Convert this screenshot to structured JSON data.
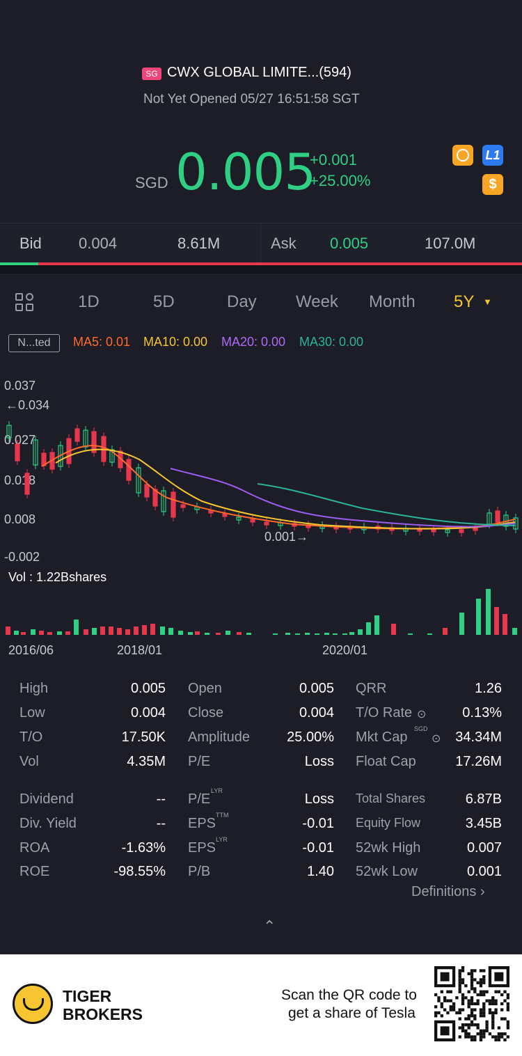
{
  "header": {
    "market_tag": "SG",
    "title": "CWX GLOBAL LIMITE...(594)",
    "status": "Not Yet Opened 05/27 16:51:58 SGT",
    "currency": "SGD",
    "price": "0.005",
    "change": "+0.001",
    "change_pct": "+25.00%",
    "icons": [
      "no-short-icon",
      "level1-icon",
      "dollar-icon"
    ],
    "level_icon_text": "L1",
    "dollar_icon_text": "$"
  },
  "quote": {
    "bid_label": "Bid",
    "bid_price": "0.004",
    "bid_size": "8.61M",
    "ask_label": "Ask",
    "ask_price": "0.005",
    "ask_size": "107.0M"
  },
  "tabs": {
    "items": [
      "1D",
      "5D",
      "Day",
      "Week",
      "Month",
      "5Y"
    ],
    "active": "5Y"
  },
  "indicators": {
    "badge": "N...ted",
    "ma5": "MA5: 0.01",
    "ma10": "MA10: 0.00",
    "ma20": "MA20: 0.00",
    "ma30": "MA30: 0.00"
  },
  "chart_data": {
    "type": "candlestick",
    "y_ticks": [
      "0.037",
      "0.027",
      "0.018",
      "0.008",
      "-0.002"
    ],
    "max_label": "←0.034",
    "min_label": "0.001→",
    "volume_label": "Vol  : 1.22Bshares",
    "x_ticks": [
      "2016/06",
      "2018/01",
      "2020/01"
    ],
    "ma_colors": {
      "ma5": "#ff6a2b",
      "ma10": "#f6c531",
      "ma20": "#9b5cf0",
      "ma30": "#2bb39b"
    },
    "colors": {
      "up": "#2fcf84",
      "down": "#e6374d"
    }
  },
  "stats": {
    "col1": [
      {
        "label": "High",
        "value": "0.005"
      },
      {
        "label": "Low",
        "value": "0.004"
      },
      {
        "label": "T/O",
        "value": "17.50K"
      },
      {
        "label": "Vol",
        "value": "4.35M"
      },
      {
        "label": "Dividend",
        "value": "--"
      },
      {
        "label": "Div. Yield",
        "value": "--"
      },
      {
        "label": "ROA",
        "value": "-1.63%"
      },
      {
        "label": "ROE",
        "value": "-98.55%"
      }
    ],
    "col2": [
      {
        "label": "Open",
        "value": "0.005"
      },
      {
        "label": "Close",
        "value": "0.004"
      },
      {
        "label": "Amplitude",
        "value": "25.00%"
      },
      {
        "label": "P/E",
        "value": "Loss"
      },
      {
        "label": "P/E",
        "sup": "LYR",
        "value": "Loss"
      },
      {
        "label": "EPS",
        "sup": "TTM",
        "value": "-0.01"
      },
      {
        "label": "EPS",
        "sup": "LYR",
        "value": "-0.01"
      },
      {
        "label": "P/B",
        "value": "1.40"
      }
    ],
    "col3": [
      {
        "label": "QRR",
        "value": "1.26"
      },
      {
        "label": "T/O Rate",
        "value": "0.13%"
      },
      {
        "label": "Mkt Cap",
        "sup": "SGD",
        "value": "34.34M"
      },
      {
        "label": "Float Cap",
        "value": "17.26M"
      },
      {
        "label": "Total Shares",
        "value": "6.87B"
      },
      {
        "label": "Equity Flow",
        "value": "3.45B"
      },
      {
        "label": "52wk High",
        "value": "0.007"
      },
      {
        "label": "52wk Low",
        "value": "0.001"
      }
    ],
    "definitions": "Definitions"
  },
  "footer": {
    "brand_line1": "TIGER",
    "brand_line2": "BROKERS",
    "promo_line1": "Scan the QR code to",
    "promo_line2": "get a share of Tesla"
  }
}
